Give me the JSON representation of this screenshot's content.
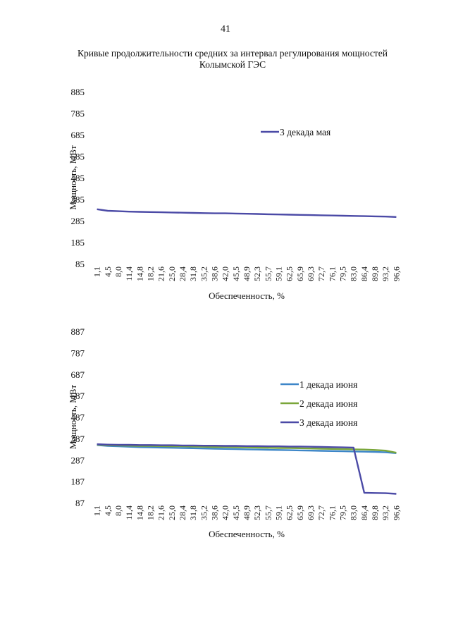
{
  "page_number": "41",
  "title_lines": [
    "Кривые продолжительности средних за интервал регулирования мощностей",
    "Колымской ГЭС"
  ],
  "chart_data": [
    {
      "type": "line",
      "x": [
        "1,1",
        "4,5",
        "8,0",
        "11,4",
        "14,8",
        "18,2",
        "21,6",
        "25,0",
        "28,4",
        "31,8",
        "35,2",
        "38,6",
        "42,0",
        "45,5",
        "48,9",
        "52,3",
        "55,7",
        "59,1",
        "62,5",
        "65,9",
        "69,3",
        "72,7",
        "76,1",
        "79,5",
        "83,0",
        "86,4",
        "89,8",
        "93,2",
        "96,6"
      ],
      "xlabel": "Обеспеченность, %",
      "ylabel": "Мощность, МВт",
      "yticks": [
        "885",
        "785",
        "685",
        "585",
        "485",
        "385",
        "285",
        "185",
        "85"
      ],
      "ylim": [
        85,
        885
      ],
      "grid": false,
      "legend_position": "top-right",
      "series": [
        {
          "name": "3 декада мая",
          "color": "#4b4aa6",
          "values": [
            338,
            331,
            329,
            327,
            326,
            325,
            324,
            323,
            322,
            321,
            320,
            319,
            319,
            318,
            317,
            316,
            315,
            314,
            313,
            312,
            311,
            310,
            309,
            308,
            307,
            306,
            305,
            304,
            302
          ]
        }
      ]
    },
    {
      "type": "line",
      "x": [
        "1,1",
        "4,5",
        "8,0",
        "11,4",
        "14,8",
        "18,2",
        "21,6",
        "25,0",
        "28,4",
        "31,8",
        "35,2",
        "38,6",
        "42,0",
        "45,5",
        "48,9",
        "52,3",
        "55,7",
        "59,1",
        "62,5",
        "65,9",
        "69,3",
        "72,7",
        "76,1",
        "79,5",
        "83,0",
        "86,4",
        "89,8",
        "93,2",
        "96,6"
      ],
      "xlabel": "Обеспеченность, %",
      "ylabel": "Мощность, МВт",
      "yticks": [
        "887",
        "787",
        "687",
        "587",
        "487",
        "387",
        "287",
        "187",
        "87"
      ],
      "ylim": [
        87,
        887
      ],
      "grid": false,
      "legend_position": "top-right",
      "series": [
        {
          "name": "1 декада июня",
          "color": "#3d86c8",
          "values": [
            356,
            352,
            350,
            348,
            346,
            345,
            344,
            343,
            342,
            341,
            340,
            339,
            338,
            337,
            336,
            335,
            334,
            333,
            332,
            331,
            330,
            329,
            328,
            327,
            326,
            325,
            324,
            322,
            318
          ]
        },
        {
          "name": "2 декада июня",
          "color": "#7aa63a",
          "values": [
            358,
            355,
            354,
            353,
            352,
            352,
            351,
            350,
            350,
            349,
            348,
            347,
            347,
            346,
            345,
            344,
            343,
            342,
            342,
            341,
            340,
            339,
            338,
            337,
            336,
            335,
            333,
            330,
            320
          ]
        },
        {
          "name": "3 декада июня",
          "color": "#4b4aa6",
          "values": [
            360,
            358,
            357,
            357,
            356,
            356,
            355,
            355,
            354,
            354,
            353,
            353,
            352,
            352,
            351,
            351,
            350,
            350,
            349,
            349,
            348,
            347,
            346,
            345,
            344,
            133,
            132,
            131,
            128
          ]
        }
      ]
    }
  ]
}
